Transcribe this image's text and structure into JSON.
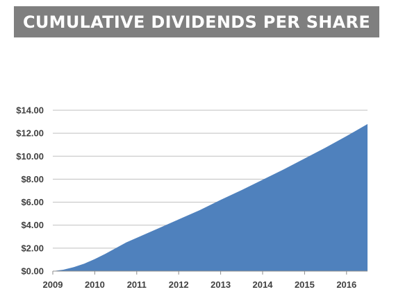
{
  "chart_data": {
    "type": "area",
    "title": "CUMULATIVE DIVIDENDS PER SHARE",
    "xlabel": "",
    "ylabel": "",
    "x_ticks": [
      "2009",
      "2010",
      "2011",
      "2012",
      "2013",
      "2014",
      "2015",
      "2016"
    ],
    "y_ticks": [
      "$0.00",
      "$2.00",
      "$4.00",
      "$6.00",
      "$8.00",
      "$10.00",
      "$12.00",
      "$14.00"
    ],
    "xlim": [
      2009,
      2016.5
    ],
    "ylim": [
      0,
      14
    ],
    "grid": true,
    "legend": "none",
    "color": "#4f81bd",
    "series": [
      {
        "x": [
          2009.0,
          2009.25,
          2009.5,
          2009.75,
          2010.0,
          2010.25,
          2010.5,
          2010.75,
          2011.0,
          2011.5,
          2012.0,
          2012.5,
          2013.0,
          2013.5,
          2014.0,
          2014.5,
          2015.0,
          2015.5,
          2016.0,
          2016.5
        ],
        "values": [
          0.0,
          0.12,
          0.35,
          0.65,
          1.05,
          1.5,
          2.0,
          2.5,
          2.9,
          3.7,
          4.5,
          5.3,
          6.2,
          7.05,
          7.95,
          8.85,
          9.8,
          10.75,
          11.75,
          12.8
        ]
      }
    ]
  }
}
